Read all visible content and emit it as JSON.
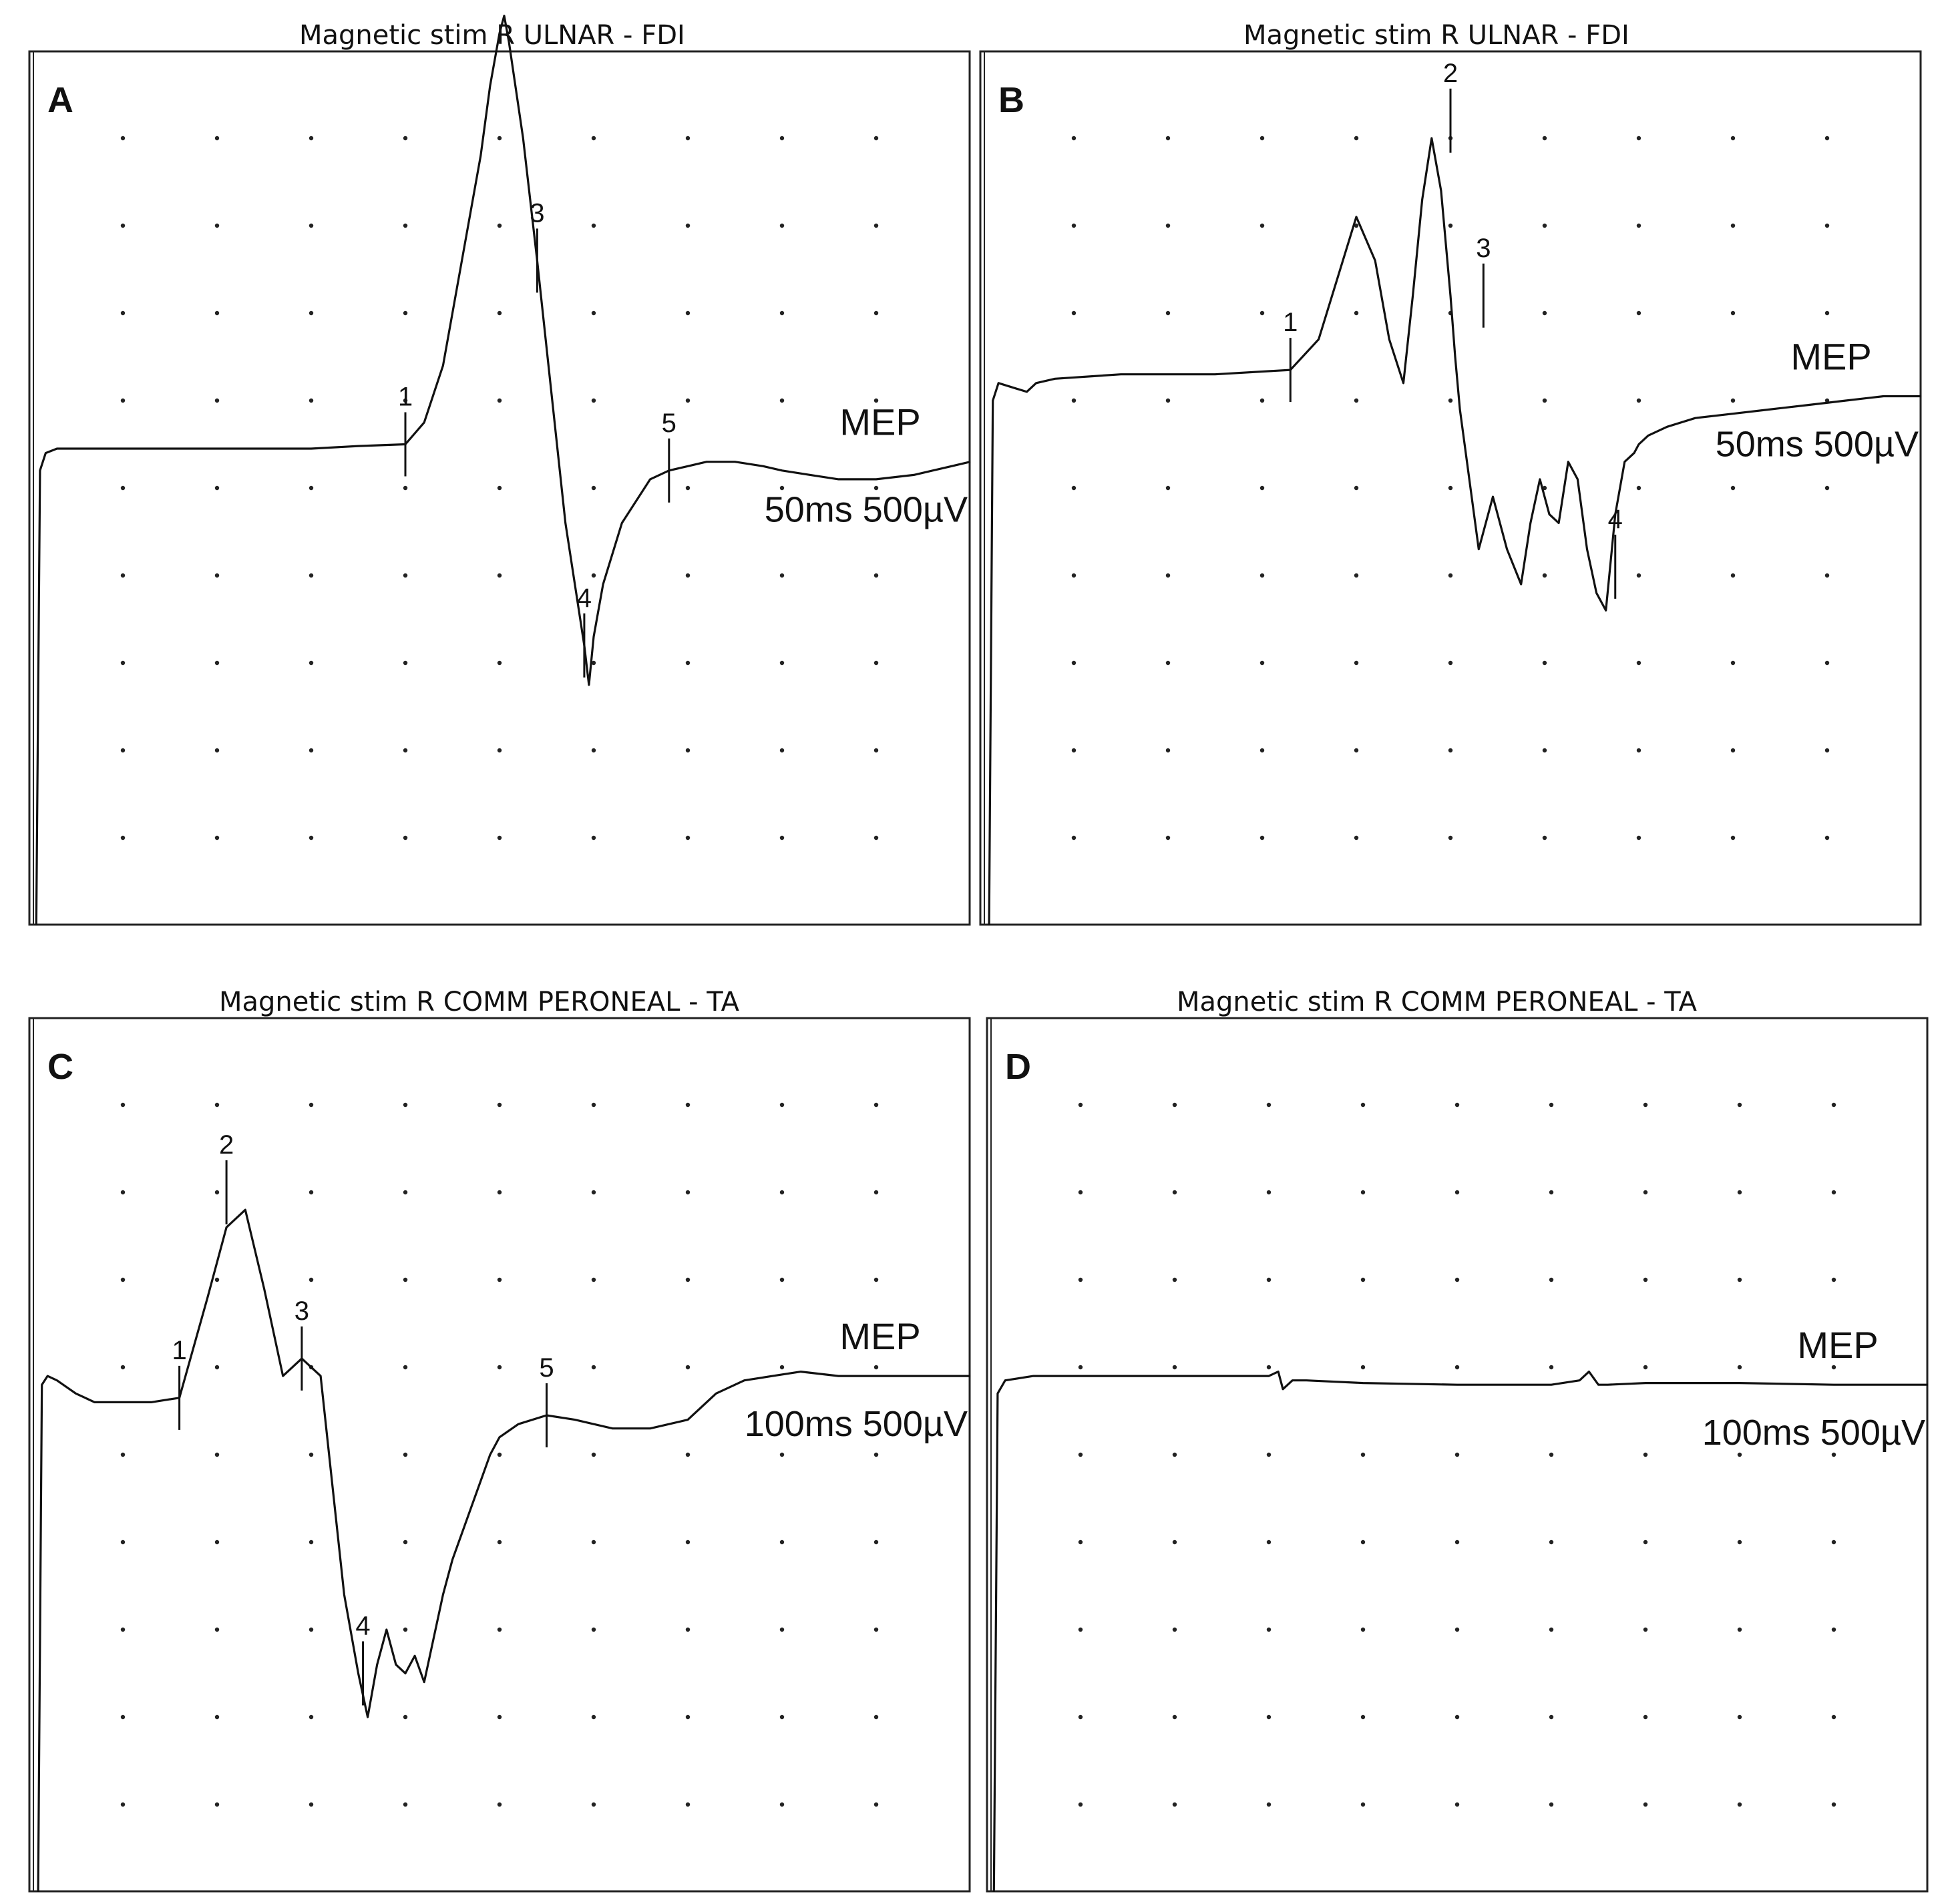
{
  "chart_data": [
    {
      "type": "line",
      "panel": "A",
      "title": "Magnetic stim R ULNAR - FDI",
      "trace_label": "MEP",
      "scale_label": "50ms 500µV",
      "ylim": [
        -2,
        8
      ],
      "xlim": [
        0,
        10
      ],
      "grid": "dotted",
      "series": [
        {
          "x": [
            0.08,
            0.12,
            0.18,
            0.3,
            1.0,
            2.0,
            3.0,
            3.5,
            4.0,
            4.2,
            4.4,
            4.6,
            4.8,
            4.9,
            5.0,
            5.05,
            5.1,
            5.25,
            5.4,
            5.5,
            5.6,
            5.7,
            5.8,
            5.9,
            5.95,
            6.0,
            6.1,
            6.3,
            6.6,
            6.8,
            7.0,
            7.2,
            7.5,
            7.8,
            8.0,
            8.3,
            8.6,
            9.0,
            9.4,
            9.8,
            10.0
          ],
          "y": [
            -2.0,
            3.2,
            3.4,
            3.45,
            3.45,
            3.45,
            3.45,
            3.48,
            3.5,
            3.75,
            4.4,
            5.6,
            6.8,
            7.6,
            8.2,
            8.4,
            8.1,
            7.0,
            5.6,
            4.6,
            3.6,
            2.6,
            1.9,
            1.2,
            0.75,
            1.3,
            1.9,
            2.6,
            3.1,
            3.2,
            3.25,
            3.3,
            3.3,
            3.25,
            3.2,
            3.15,
            3.1,
            3.1,
            3.15,
            3.25,
            3.3
          ]
        }
      ],
      "markers": [
        {
          "label": "1",
          "x": 4.0,
          "y": 3.5
        },
        {
          "label": "3",
          "x": 5.4,
          "y": 5.6
        },
        {
          "label": "4",
          "x": 5.9,
          "y": 1.2
        },
        {
          "label": "5",
          "x": 6.8,
          "y": 3.2
        }
      ]
    },
    {
      "type": "line",
      "panel": "B",
      "title": "Magnetic stim R ULNAR - FDI",
      "trace_label": "MEP",
      "scale_label": "50ms 500µV",
      "ylim": [
        -2,
        8
      ],
      "xlim": [
        0,
        10
      ],
      "grid": "dotted",
      "series": [
        {
          "x": [
            0.1,
            0.14,
            0.2,
            0.5,
            0.6,
            0.8,
            1.5,
            2.5,
            3.3,
            3.6,
            3.8,
            4.0,
            4.2,
            4.35,
            4.5,
            4.6,
            4.7,
            4.8,
            4.9,
            5.0,
            5.05,
            5.1,
            5.2,
            5.3,
            5.45,
            5.6,
            5.75,
            5.85,
            5.95,
            6.05,
            6.15,
            6.25,
            6.35,
            6.45,
            6.55,
            6.65,
            6.75,
            6.85,
            6.95,
            7.0,
            7.1,
            7.3,
            7.6,
            8.0,
            8.4,
            8.8,
            9.2,
            9.6,
            10.0
          ],
          "y": [
            -2.0,
            4.0,
            4.2,
            4.1,
            4.2,
            4.25,
            4.3,
            4.3,
            4.35,
            4.7,
            5.4,
            6.1,
            5.6,
            4.7,
            4.2,
            5.2,
            6.3,
            7.0,
            6.4,
            5.2,
            4.5,
            3.9,
            3.1,
            2.3,
            2.9,
            2.3,
            1.9,
            2.6,
            3.1,
            2.7,
            2.6,
            3.3,
            3.1,
            2.3,
            1.8,
            1.6,
            2.7,
            3.3,
            3.4,
            3.5,
            3.6,
            3.7,
            3.8,
            3.85,
            3.9,
            3.95,
            4.0,
            4.05,
            4.05
          ]
        }
      ],
      "markers": [
        {
          "label": "1",
          "x": 3.3,
          "y": 4.35
        },
        {
          "label": "2",
          "x": 5.0,
          "y": 7.2
        },
        {
          "label": "3",
          "x": 5.35,
          "y": 5.2
        },
        {
          "label": "4",
          "x": 6.75,
          "y": 2.1
        }
      ]
    },
    {
      "type": "line",
      "panel": "C",
      "title": "Magnetic stim R COMM PERONEAL - TA",
      "trace_label": "MEP",
      "scale_label": "100ms 500µV",
      "ylim": [
        -2,
        8
      ],
      "xlim": [
        0,
        10
      ],
      "grid": "dotted",
      "series": [
        {
          "x": [
            0.1,
            0.14,
            0.2,
            0.3,
            0.5,
            0.7,
            1.0,
            1.3,
            1.6,
            1.9,
            2.1,
            2.3,
            2.5,
            2.7,
            2.9,
            3.1,
            3.2,
            3.35,
            3.5,
            3.6,
            3.7,
            3.8,
            3.9,
            4.0,
            4.1,
            4.2,
            4.3,
            4.4,
            4.5,
            4.6,
            4.7,
            4.8,
            4.9,
            5.0,
            5.2,
            5.5,
            5.8,
            6.2,
            6.6,
            7.0,
            7.3,
            7.6,
            7.9,
            8.2,
            8.6,
            9.0,
            9.4,
            9.8,
            10.0
          ],
          "y": [
            -2.0,
            3.8,
            3.9,
            3.85,
            3.7,
            3.6,
            3.6,
            3.6,
            3.65,
            4.8,
            5.6,
            5.8,
            4.9,
            3.9,
            4.1,
            3.9,
            2.9,
            1.4,
            0.5,
            0.0,
            0.6,
            1.0,
            0.6,
            0.5,
            0.7,
            0.4,
            0.9,
            1.4,
            1.8,
            2.1,
            2.4,
            2.7,
            3.0,
            3.2,
            3.35,
            3.45,
            3.4,
            3.3,
            3.3,
            3.4,
            3.7,
            3.85,
            3.9,
            3.95,
            3.9,
            3.9,
            3.9,
            3.9,
            3.9
          ]
        }
      ],
      "markers": [
        {
          "label": "1",
          "x": 1.6,
          "y": 3.65
        },
        {
          "label": "2",
          "x": 2.1,
          "y": 6.0
        },
        {
          "label": "3",
          "x": 2.9,
          "y": 4.1
        },
        {
          "label": "4",
          "x": 3.55,
          "y": 0.5
        },
        {
          "label": "5",
          "x": 5.5,
          "y": 3.45
        }
      ]
    },
    {
      "type": "line",
      "panel": "D",
      "title": "Magnetic stim R COMM PERONEAL - TA",
      "trace_label": "MEP",
      "scale_label": "100ms 500µV",
      "ylim": [
        -2,
        8
      ],
      "xlim": [
        0,
        10
      ],
      "grid": "dotted",
      "series": [
        {
          "x": [
            0.08,
            0.12,
            0.2,
            0.5,
            1.0,
            2.0,
            3.0,
            3.1,
            3.15,
            3.25,
            3.4,
            4.0,
            5.0,
            6.0,
            6.3,
            6.4,
            6.5,
            6.6,
            7.0,
            8.0,
            9.0,
            10.0
          ],
          "y": [
            -2.0,
            3.7,
            3.85,
            3.9,
            3.9,
            3.9,
            3.9,
            3.95,
            3.75,
            3.85,
            3.85,
            3.82,
            3.8,
            3.8,
            3.85,
            3.95,
            3.8,
            3.8,
            3.82,
            3.82,
            3.8,
            3.8
          ]
        }
      ],
      "markers": []
    }
  ]
}
